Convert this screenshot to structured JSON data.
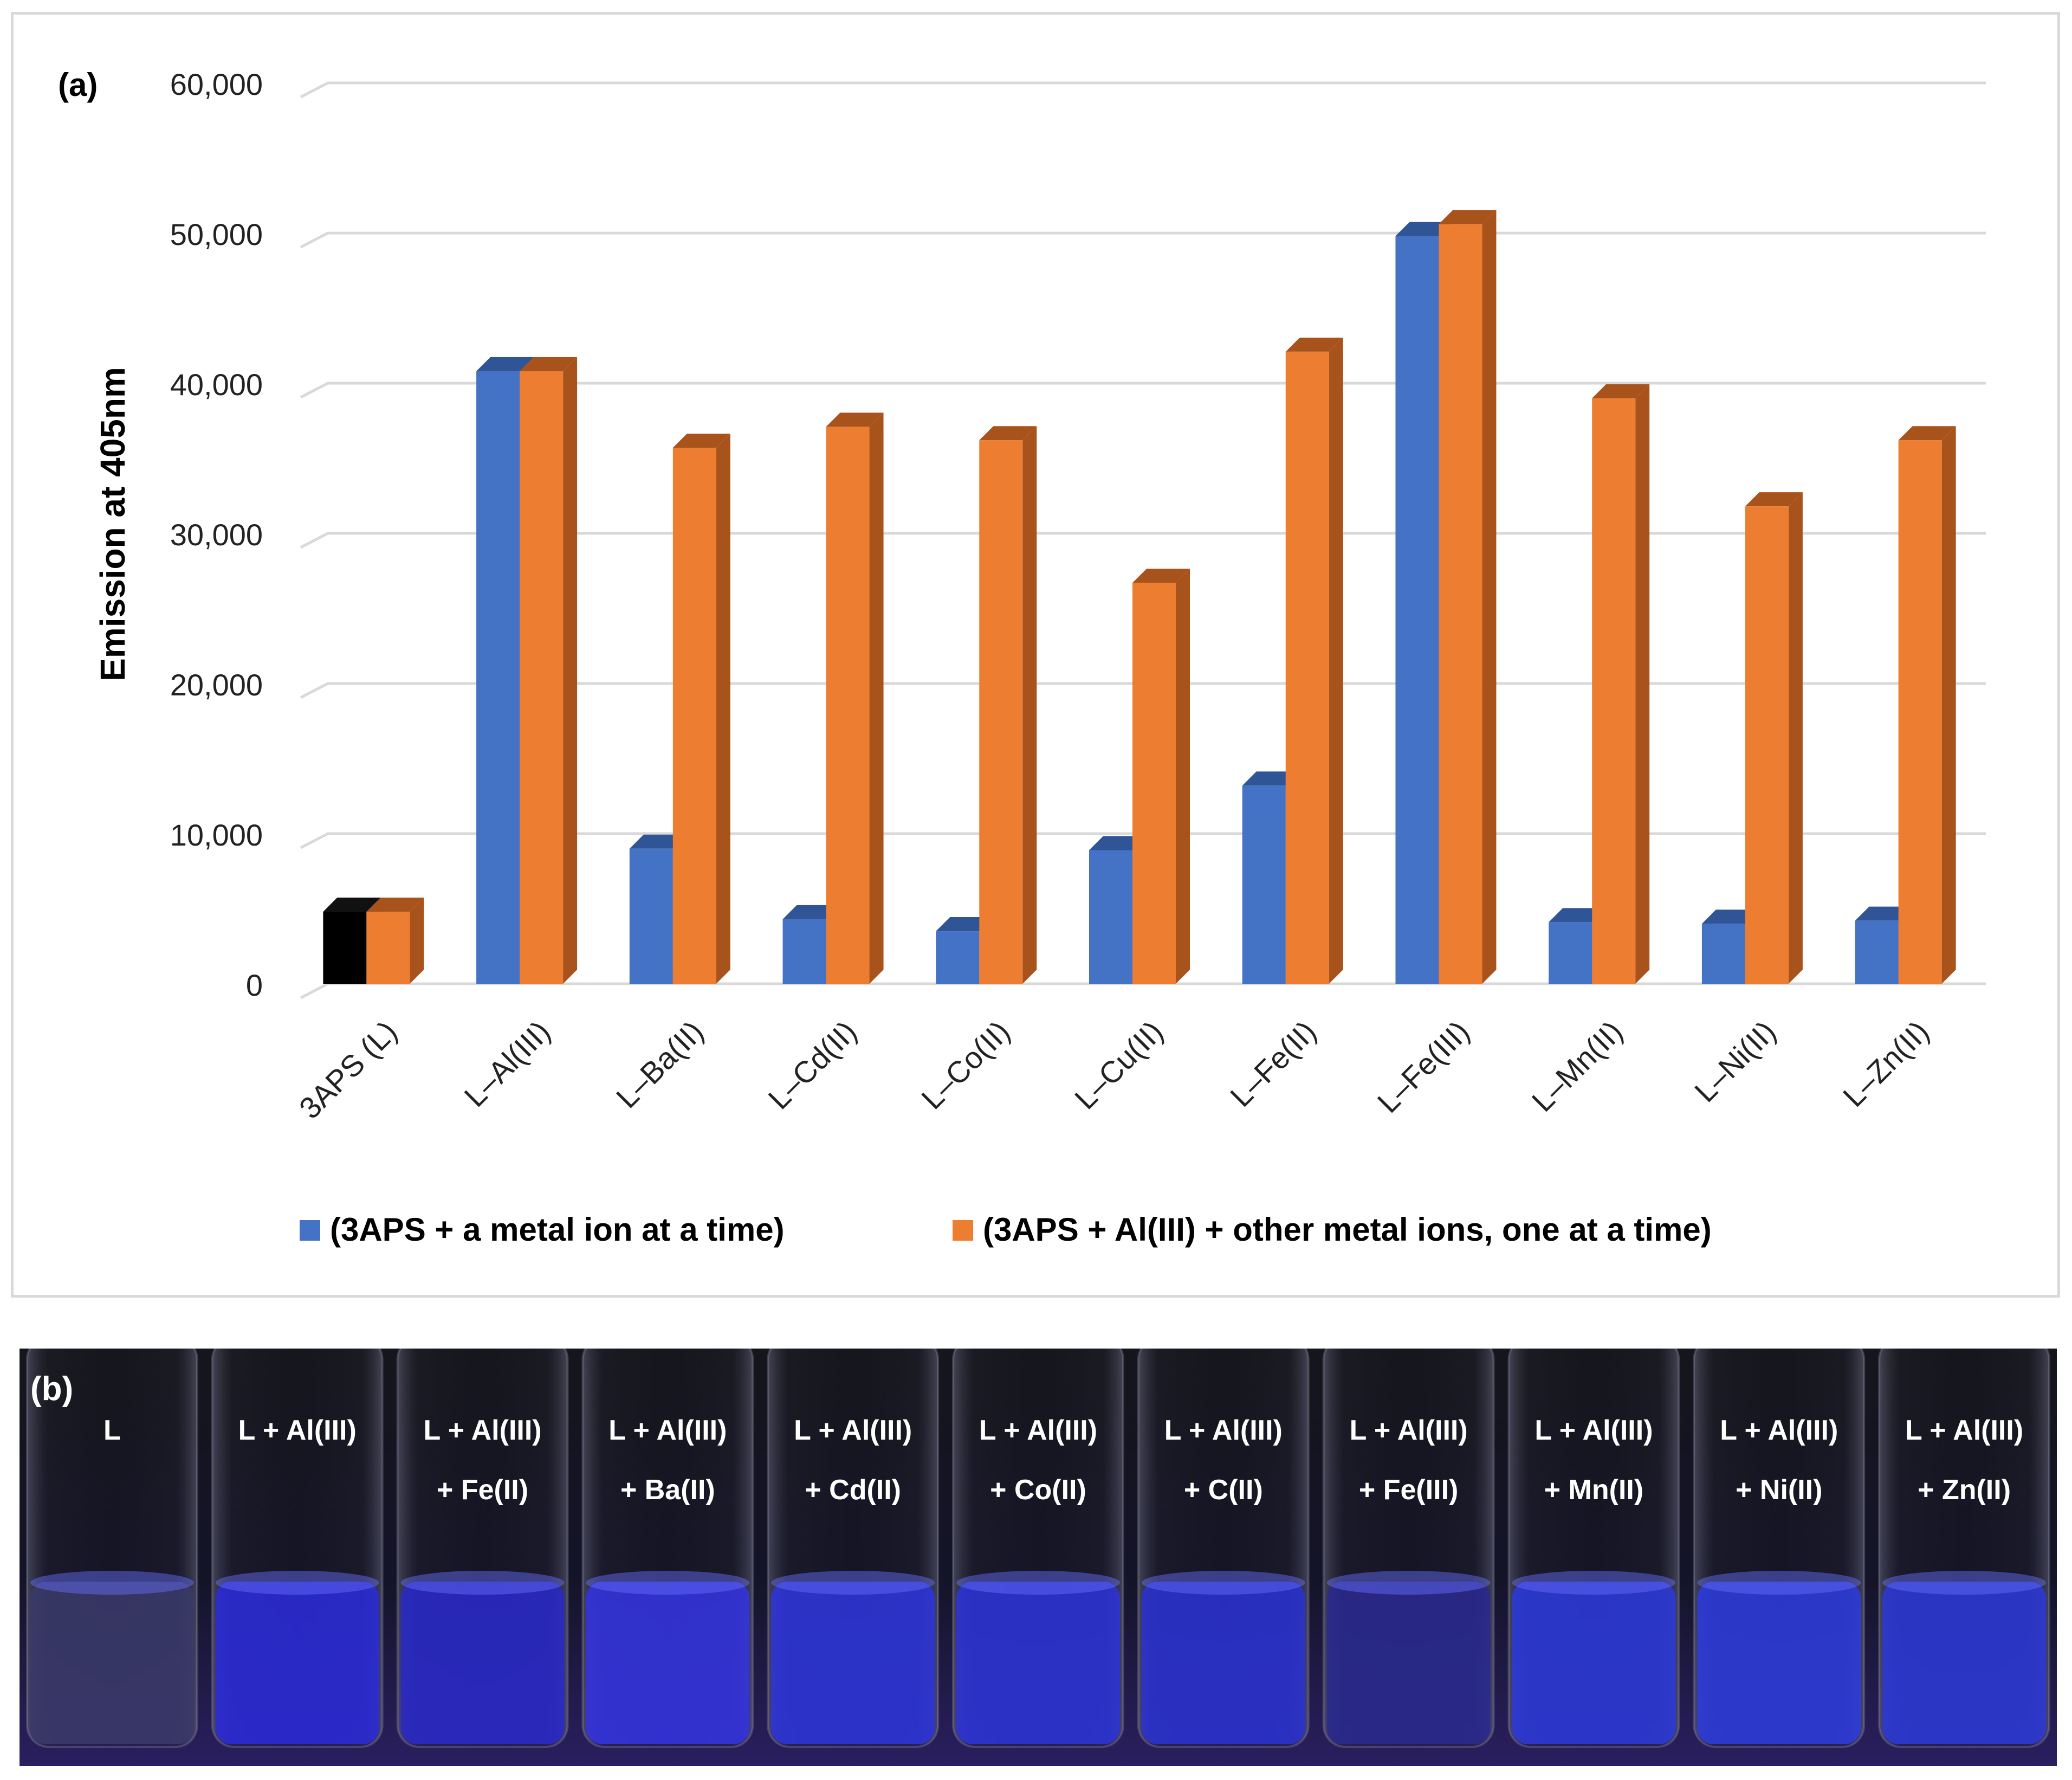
{
  "chart_data": {
    "type": "bar",
    "panel_label": "(a)",
    "title": "",
    "ylabel": "Emission at 405nm",
    "xlabel": "",
    "ylim": [
      0,
      60000
    ],
    "yticks": [
      0,
      10000,
      20000,
      30000,
      40000,
      50000,
      60000
    ],
    "ytick_labels": [
      "0",
      "10,000",
      "20,000",
      "30,000",
      "40,000",
      "50,000",
      "60,000"
    ],
    "grid": true,
    "legend_position": "bottom",
    "categories": [
      "3APS (L)",
      "L–Al(III)",
      "L–Ba(II)",
      "L–Cd(II)",
      "L–Co(II)",
      "L–Cu(II)",
      "L–Fe(II)",
      "L–Fe(III)",
      "L–Mn(II)",
      "L–Ni(II)",
      "L–Zn(II)"
    ],
    "series": [
      {
        "name": "(3APS + a metal ion at a time)",
        "color": "#4472c4",
        "side_color": "#2f5597",
        "first_bar_color": "#000000",
        "values": [
          4800,
          40800,
          9000,
          4300,
          3500,
          8900,
          13200,
          49800,
          4100,
          4000,
          4200
        ]
      },
      {
        "name": "(3APS + Al(III) + other metal ions, one at a time)",
        "color": "#ed7d31",
        "side_color": "#a9531c",
        "values": [
          4800,
          40800,
          35700,
          37100,
          36200,
          26700,
          42100,
          50600,
          39000,
          31800,
          36200
        ]
      }
    ]
  },
  "photo": {
    "panel_label": "(b)",
    "vials": [
      {
        "line1": "L",
        "line2": "",
        "glow": "#3a3a6a"
      },
      {
        "line1": "L + Al(III)",
        "line2": "",
        "glow": "#2b2bd8"
      },
      {
        "line1": "L + Al(III)",
        "line2": "+ Fe(II)",
        "glow": "#2a2ac8"
      },
      {
        "line1": "L + Al(III)",
        "line2": "+ Ba(II)",
        "glow": "#3434e0"
      },
      {
        "line1": "L + Al(III)",
        "line2": "+ Cd(II)",
        "glow": "#2d36da"
      },
      {
        "line1": "L + Al(III)",
        "line2": "+ Co(II)",
        "glow": "#2c34d6"
      },
      {
        "line1": "L + Al(III)",
        "line2": "+ C(II)",
        "glow": "#2b32d0"
      },
      {
        "line1": "L + Al(III)",
        "line2": "+ Fe(III)",
        "glow": "#2a2a90"
      },
      {
        "line1": "L + Al(III)",
        "line2": "+ Mn(II)",
        "glow": "#2c3ada"
      },
      {
        "line1": "L + Al(III)",
        "line2": "+ Ni(II)",
        "glow": "#2d3cdc"
      },
      {
        "line1": "L + Al(III)",
        "line2": "+ Zn(II)",
        "glow": "#2c3ad6"
      }
    ]
  }
}
